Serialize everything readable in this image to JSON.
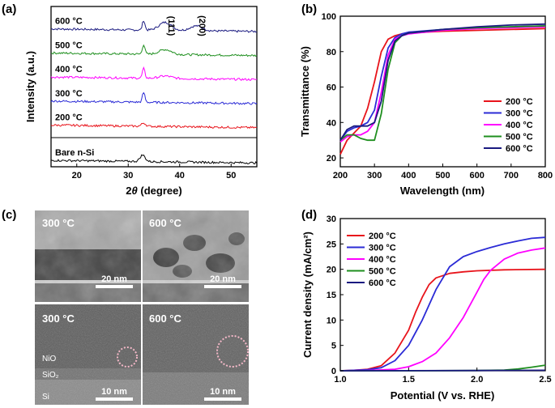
{
  "chart_data": [
    {
      "id": "a",
      "panel_label": "(a)",
      "type": "line",
      "xlabel_prefix": "2",
      "xlabel_theta": "θ",
      "xlabel_suffix": " (degree)",
      "ylabel": "Intensity (a.u.)",
      "xlim": [
        15,
        55
      ],
      "xticks": [
        20,
        30,
        40,
        50
      ],
      "annotations": [
        {
          "text": "(111)",
          "x": 37.2
        },
        {
          "text": "(200)",
          "x": 43.2
        }
      ],
      "series": [
        {
          "name": "600 °C",
          "color": "#1a1a80",
          "offset": 86,
          "peaks": [
            [
              33.0,
              6,
              0.25
            ],
            [
              37.2,
              5,
              1.2
            ],
            [
              43.2,
              3,
              1.2
            ]
          ]
        },
        {
          "name": "500 °C",
          "color": "#1f8f1f",
          "offset": 71,
          "peaks": [
            [
              33.0,
              6,
              0.25
            ],
            [
              37.2,
              3,
              1.2
            ]
          ]
        },
        {
          "name": "400 °C",
          "color": "#ff00ff",
          "offset": 56,
          "peaks": [
            [
              33.0,
              6,
              0.25
            ],
            [
              37.2,
              1.5,
              1.2
            ]
          ]
        },
        {
          "name": "300 °C",
          "color": "#2b2bd6",
          "offset": 41,
          "peaks": [
            [
              33.0,
              6,
              0.25
            ]
          ]
        },
        {
          "name": "200 °C",
          "color": "#e8141b",
          "offset": 26,
          "peaks": [
            [
              33.0,
              2,
              0.4
            ]
          ]
        },
        {
          "name": "Bare n-Si",
          "color": "#000000",
          "offset": 4,
          "peaks": [
            [
              32.8,
              4,
              0.5
            ]
          ]
        }
      ]
    },
    {
      "id": "b",
      "panel_label": "(b)",
      "type": "line",
      "xlabel": "Wavelength (nm)",
      "ylabel": "Transmittance (%)",
      "xlim": [
        200,
        800
      ],
      "ylim": [
        15,
        100
      ],
      "xticks": [
        200,
        300,
        400,
        500,
        600,
        700,
        800
      ],
      "yticks": [
        20,
        40,
        60,
        80,
        100
      ],
      "legend_position": "bottom-right",
      "series": [
        {
          "name": "200 °C",
          "color": "#e8141b",
          "x": [
            200,
            220,
            240,
            260,
            280,
            300,
            320,
            340,
            360,
            380,
            400,
            500,
            600,
            700,
            800
          ],
          "y": [
            22,
            30,
            34,
            38,
            48,
            63,
            80,
            87,
            89,
            90,
            90.5,
            91.5,
            92,
            92.5,
            93
          ]
        },
        {
          "name": "300 °C",
          "color": "#2b2bd6",
          "x": [
            200,
            220,
            240,
            260,
            280,
            300,
            320,
            340,
            360,
            380,
            400,
            500,
            600,
            700,
            800
          ],
          "y": [
            30,
            35,
            37,
            38,
            40,
            47,
            66,
            82,
            88,
            90,
            91,
            92.5,
            93.5,
            94,
            94.5
          ]
        },
        {
          "name": "400 °C",
          "color": "#ff00ff",
          "x": [
            200,
            220,
            240,
            260,
            280,
            300,
            320,
            340,
            360,
            380,
            400,
            500,
            600,
            700,
            800
          ],
          "y": [
            29,
            32,
            33,
            33,
            35,
            40,
            57,
            78,
            87,
            89,
            90,
            92,
            93,
            93.5,
            94
          ]
        },
        {
          "name": "500 °C",
          "color": "#1f8f1f",
          "x": [
            200,
            220,
            240,
            260,
            280,
            300,
            320,
            340,
            360,
            380,
            400,
            500,
            600,
            700,
            800
          ],
          "y": [
            30,
            33,
            33,
            31,
            30,
            30,
            45,
            70,
            85,
            89,
            90.5,
            92.5,
            93.5,
            94,
            94.5
          ]
        },
        {
          "name": "600 °C",
          "color": "#1a1a80",
          "x": [
            200,
            220,
            240,
            260,
            280,
            300,
            320,
            340,
            360,
            380,
            400,
            500,
            600,
            700,
            800
          ],
          "y": [
            30,
            36,
            38,
            38,
            38,
            40,
            52,
            75,
            86,
            89,
            90.5,
            92.5,
            94,
            95,
            95.5
          ]
        }
      ]
    },
    {
      "id": "d",
      "panel_label": "(d)",
      "type": "line",
      "xlabel": "Potential (V vs. RHE)",
      "ylabel": "Current density (mA/cm²)",
      "xlim": [
        1.0,
        2.5
      ],
      "ylim": [
        0,
        30
      ],
      "xticks": [
        1.0,
        1.5,
        2.0,
        2.5
      ],
      "yticks": [
        0,
        5,
        10,
        15,
        20,
        25,
        30
      ],
      "legend_position": "top-left",
      "series": [
        {
          "name": "200 °C",
          "color": "#e8141b",
          "x": [
            1.0,
            1.1,
            1.2,
            1.3,
            1.4,
            1.5,
            1.55,
            1.6,
            1.65,
            1.7,
            1.8,
            1.9,
            2.0,
            2.2,
            2.5
          ],
          "y": [
            0,
            0.1,
            0.3,
            1,
            3.5,
            8,
            11.5,
            14.5,
            17,
            18.3,
            19.2,
            19.5,
            19.7,
            19.9,
            20
          ]
        },
        {
          "name": "300 °C",
          "color": "#2b2bd6",
          "x": [
            1.0,
            1.1,
            1.2,
            1.3,
            1.4,
            1.5,
            1.6,
            1.7,
            1.8,
            1.9,
            2.0,
            2.1,
            2.2,
            2.3,
            2.4,
            2.5
          ],
          "y": [
            0,
            0.1,
            0.2,
            0.6,
            2,
            5,
            10,
            16,
            20.5,
            22.5,
            23.5,
            24.3,
            25,
            25.6,
            26.1,
            26.3
          ]
        },
        {
          "name": "400 °C",
          "color": "#ff00ff",
          "x": [
            1.0,
            1.2,
            1.4,
            1.5,
            1.6,
            1.7,
            1.8,
            1.9,
            2.0,
            2.05,
            2.1,
            2.2,
            2.3,
            2.4,
            2.5
          ],
          "y": [
            0,
            0.05,
            0.3,
            0.8,
            1.8,
            3.5,
            6.5,
            10.5,
            15.5,
            18,
            19.8,
            22,
            23.2,
            23.8,
            24.2
          ]
        },
        {
          "name": "500 °C",
          "color": "#1f8f1f",
          "x": [
            1.0,
            1.5,
            2.0,
            2.2,
            2.3,
            2.4,
            2.5
          ],
          "y": [
            0,
            0,
            0.05,
            0.15,
            0.35,
            0.7,
            1.1
          ]
        },
        {
          "name": "600 °C",
          "color": "#1a1a80",
          "x": [
            1.0,
            1.5,
            2.0,
            2.5
          ],
          "y": [
            0,
            0.02,
            0.05,
            0.1
          ]
        }
      ]
    }
  ],
  "panel_c": {
    "panel_label": "(c)",
    "images": [
      {
        "label": "300 °C",
        "scale": "20 nm"
      },
      {
        "label": "600 °C",
        "scale": "20 nm"
      },
      {
        "label": "300 °C",
        "scale": "10 nm",
        "layers": [
          "NiO",
          "SiO₂",
          "Si"
        ]
      },
      {
        "label": "600 °C",
        "scale": "10 nm"
      }
    ]
  }
}
